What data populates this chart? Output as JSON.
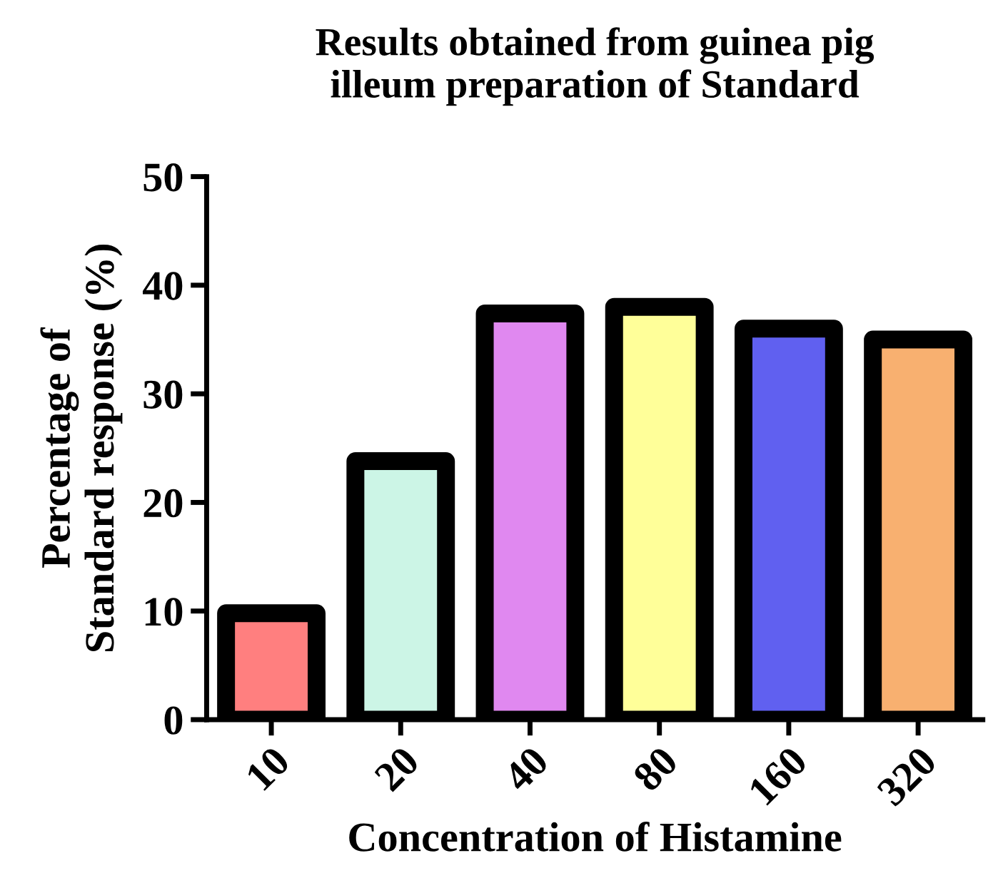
{
  "chart_data": {
    "type": "bar",
    "title": "Results obtained from guinea pig\nilleum preparation of Standard",
    "xlabel": "Concentration of Histamine",
    "ylabel": "Percentage of\nStandard response (%)",
    "categories": [
      "10",
      "20",
      "40",
      "80",
      "160",
      "320"
    ],
    "values": [
      9.8,
      23.8,
      37.4,
      38.0,
      36.0,
      35.0
    ],
    "colors": [
      "#ff7f7f",
      "#ccf5e6",
      "#e088f0",
      "#ffff99",
      "#6060f0",
      "#f8b070"
    ],
    "ylim": [
      0,
      50
    ],
    "yticks": [
      0,
      10,
      20,
      30,
      40,
      50
    ],
    "grid": false
  }
}
